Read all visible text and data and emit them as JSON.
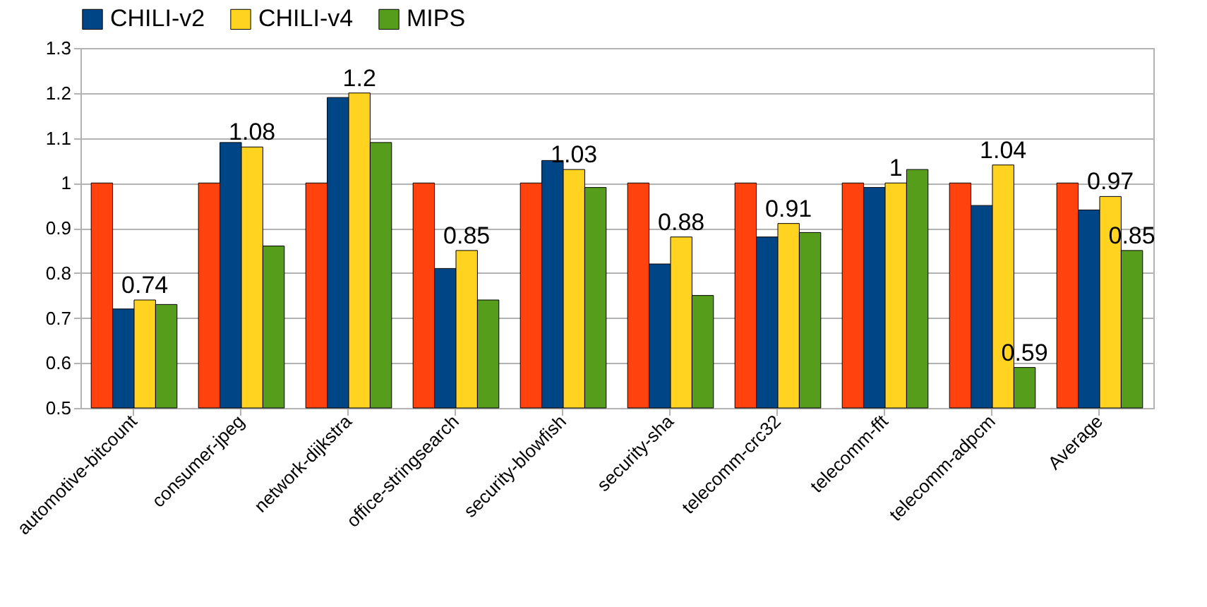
{
  "chart_data": {
    "type": "bar",
    "categories": [
      "automotive-bitcount",
      "consumer-jpeg",
      "network-dijkstra",
      "office-stringsearch",
      "security-blowfish",
      "security-sha",
      "telecomm-crc32",
      "telecomm-fft",
      "telecomm-adpcm",
      "Average"
    ],
    "series": [
      {
        "color": "#ff420e",
        "values": [
          1,
          1,
          1,
          1,
          1,
          1,
          1,
          1,
          1,
          1
        ]
      },
      {
        "name": "CHILI-v2",
        "color": "#004586",
        "values": [
          0.72,
          1.09,
          1.19,
          0.81,
          1.05,
          0.82,
          0.88,
          0.99,
          0.95,
          0.94
        ]
      },
      {
        "name": "CHILI-v4",
        "color": "#ffd320",
        "values": [
          0.74,
          1.08,
          1.2,
          0.85,
          1.03,
          0.88,
          0.91,
          1,
          1.04,
          0.97
        ],
        "value_labels": [
          "0.74",
          "1.08",
          "1.2",
          "0.85",
          "1.03",
          "0.88",
          "0.91",
          "1",
          "1.04",
          "0.97"
        ]
      },
      {
        "name": "MIPS",
        "color": "#579d1c",
        "values": [
          0.73,
          0.86,
          1.09,
          0.74,
          0.99,
          0.75,
          0.89,
          1.03,
          0.59,
          0.85
        ],
        "value_labels": [
          null,
          null,
          null,
          null,
          null,
          null,
          null,
          null,
          "0.59",
          "0.85"
        ]
      }
    ],
    "ylim": [
      0.5,
      1.3
    ],
    "yticks": [
      0.5,
      0.6,
      0.7,
      0.8,
      0.9,
      1,
      1.1,
      1.2,
      1.3
    ],
    "grid": "y",
    "legend": "top"
  }
}
